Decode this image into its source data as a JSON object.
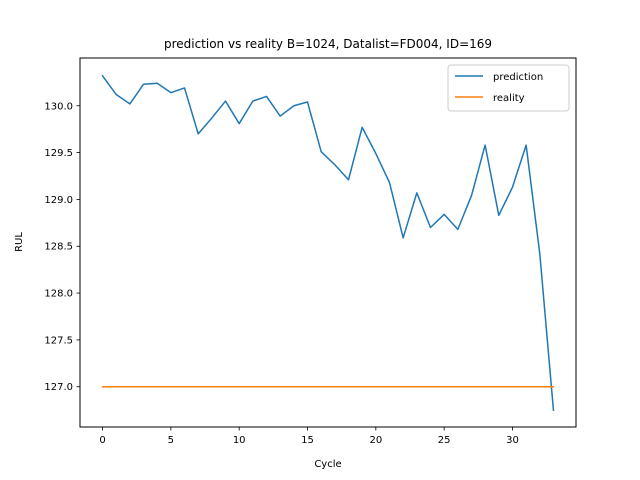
{
  "chart_data": {
    "type": "line",
    "title": "prediction vs reality B=1024, Datalist=FD004, ID=169",
    "xlabel": "Cycle",
    "ylabel": "RUL",
    "xlim": [
      -1.65,
      34.65
    ],
    "ylim": [
      126.57,
      130.51
    ],
    "xticks": [
      0,
      5,
      10,
      15,
      20,
      25,
      30
    ],
    "yticks": [
      127.0,
      127.5,
      128.0,
      128.5,
      129.0,
      129.5,
      130.0
    ],
    "ytick_labels": [
      "127.0",
      "127.5",
      "128.0",
      "128.5",
      "129.0",
      "129.5",
      "130.0"
    ],
    "grid": false,
    "legend_position": "top-right",
    "x": [
      0,
      1,
      2,
      3,
      4,
      5,
      6,
      7,
      8,
      9,
      10,
      11,
      12,
      13,
      14,
      15,
      16,
      17,
      18,
      19,
      20,
      21,
      22,
      23,
      24,
      25,
      26,
      27,
      28,
      29,
      30,
      31,
      32,
      33
    ],
    "series": [
      {
        "name": "prediction",
        "color": "#1f77b4",
        "values": [
          130.32,
          130.12,
          130.02,
          130.23,
          130.24,
          130.14,
          130.19,
          129.7,
          129.87,
          130.05,
          129.81,
          130.05,
          130.1,
          129.89,
          130.0,
          130.04,
          129.51,
          129.37,
          129.21,
          129.77,
          129.49,
          129.18,
          128.59,
          129.07,
          128.7,
          128.84,
          128.68,
          129.04,
          129.58,
          128.83,
          129.13,
          129.58,
          128.42,
          126.75
        ]
      },
      {
        "name": "reality",
        "color": "#ff7f0e",
        "values": [
          127,
          127,
          127,
          127,
          127,
          127,
          127,
          127,
          127,
          127,
          127,
          127,
          127,
          127,
          127,
          127,
          127,
          127,
          127,
          127,
          127,
          127,
          127,
          127,
          127,
          127,
          127,
          127,
          127,
          127,
          127,
          127,
          127,
          127
        ]
      }
    ]
  }
}
